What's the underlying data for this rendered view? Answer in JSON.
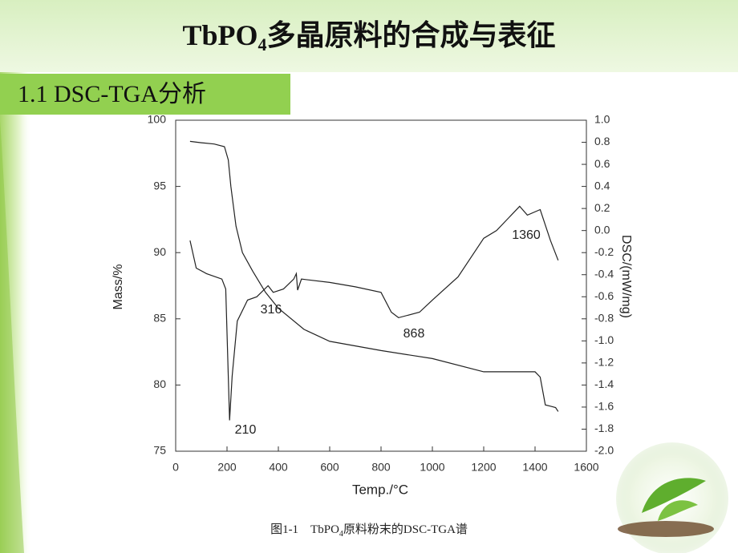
{
  "slide": {
    "title": [
      "TbPO",
      "4",
      "多晶原料的合成与表征"
    ],
    "heading": "1.1 DSC-TGA分析",
    "caption": [
      "图1-1　TbPO",
      "4",
      "原料粉末的DSC-TGA谱"
    ]
  },
  "chart_data": {
    "type": "line",
    "x_label": "Temp./°C",
    "y_label": "Mass/%",
    "y2_label": "DSC/(mW/mg)",
    "xlim": [
      0,
      1600
    ],
    "xticks": [
      0,
      200,
      400,
      600,
      800,
      1000,
      1200,
      1400,
      1600
    ],
    "ylim": [
      75,
      100
    ],
    "yticks": [
      75,
      80,
      85,
      90,
      95,
      100
    ],
    "y2lim": [
      -2,
      1
    ],
    "y2ticks": [
      {
        "value": -2,
        "label": "-2.0"
      },
      -1.8,
      -1.6,
      -1.4,
      -1.2,
      {
        "value": -1,
        "label": "-1.0"
      },
      -0.8,
      -0.6,
      -0.4,
      -0.2,
      {
        "value": 0,
        "label": "0.0"
      },
      0.2,
      0.4,
      0.6,
      0.8,
      {
        "value": 1,
        "label": "1.0"
      }
    ],
    "series": [
      {
        "color": "#222222",
        "x": [
          56,
          100,
          150,
          190,
          205,
          215,
          235,
          260,
          300,
          350,
          400,
          500,
          600,
          800,
          1000,
          1200,
          1400,
          1420,
          1440,
          1460,
          1480,
          1490
        ],
        "values": [
          98.4,
          98.3,
          98.2,
          98.0,
          97.0,
          95.0,
          92.0,
          90.0,
          88.6,
          87.0,
          85.8,
          84.2,
          83.3,
          82.6,
          82.0,
          81.0,
          81.0,
          80.6,
          78.5,
          78.4,
          78.3,
          78.0
        ]
      },
      {
        "color": "#222222",
        "axis": "y2",
        "x": [
          56,
          80,
          120,
          180,
          195,
          210,
          220,
          240,
          280,
          316,
          360,
          380,
          420,
          460,
          470,
          475,
          490,
          600,
          700,
          800,
          840,
          868,
          950,
          1000,
          1100,
          1200,
          1250,
          1340,
          1370,
          1420,
          1460,
          1490
        ],
        "values": [
          -0.09,
          -0.34,
          -0.39,
          -0.44,
          -0.53,
          -1.72,
          -1.32,
          -0.82,
          -0.63,
          -0.6,
          -0.5,
          -0.56,
          -0.53,
          -0.44,
          -0.39,
          -0.54,
          -0.44,
          -0.47,
          -0.51,
          -0.56,
          -0.74,
          -0.79,
          -0.74,
          -0.63,
          -0.42,
          -0.07,
          0.0,
          0.22,
          0.14,
          0.19,
          -0.09,
          -0.27
        ]
      }
    ],
    "annotations": [
      "210",
      "316",
      "868",
      "1360"
    ]
  }
}
